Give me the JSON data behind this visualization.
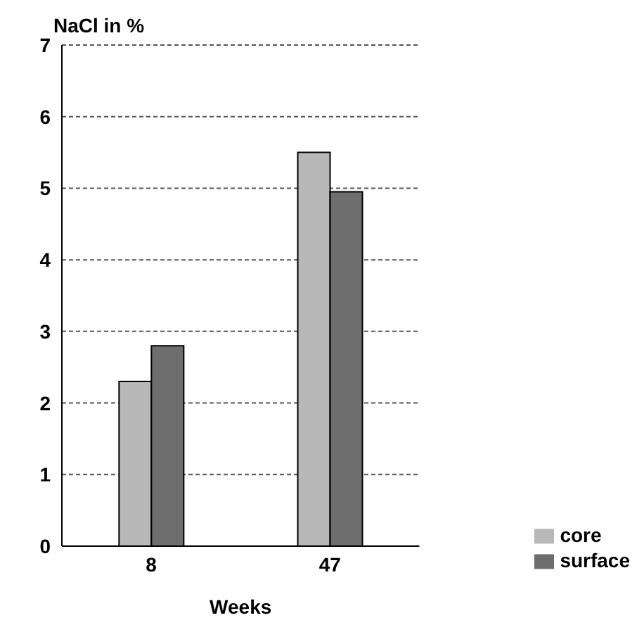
{
  "chart_data": {
    "type": "bar",
    "ylabel": "NaCl in %",
    "xlabel": "Weeks",
    "categories": [
      "8",
      "47"
    ],
    "series": [
      {
        "name": "core",
        "color": "#b8b8b8",
        "values": [
          2.3,
          5.5
        ]
      },
      {
        "name": "surface",
        "color": "#6e6e6e",
        "values": [
          2.8,
          4.95
        ]
      }
    ],
    "ylim": [
      0,
      7
    ],
    "yticks": [
      0,
      1,
      2,
      3,
      4,
      5,
      6,
      7
    ],
    "grid": "y",
    "legend": "bottom right"
  }
}
